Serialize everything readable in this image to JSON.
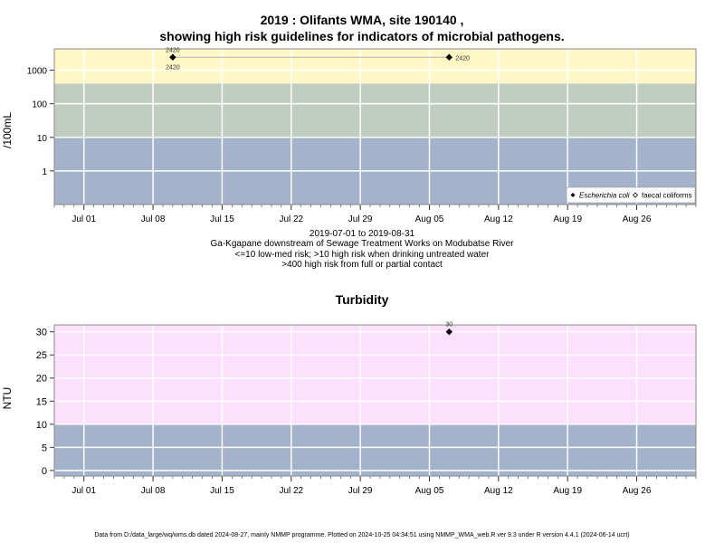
{
  "title_line1": "2019 : Olifants WMA, site 190140 ,",
  "title_line2": "showing high risk guidelines for indicators of microbial pathogens.",
  "caption": {
    "line1": "2019-07-01 to 2019-08-31",
    "line2": "Ga-Kgapane downstream of Sewage Treatment Works on Modubatse River",
    "line3": "<=10 low-med risk; >10 high risk when drinking untreated water",
    "line4": ">400 high risk from full or partial contact"
  },
  "footer": "Data from D:/data_large/wq/wms.db dated 2024-08-27, mainly NMMP programme. Plotted on 2024-10-25 04:34:51 using NMMP_WMA_web.R ver 9.3 under R version 4.4.1 (2024-06-14 ucrt)",
  "colors": {
    "low_band": "#a3b3cb",
    "mid_band": "#c2cdc2",
    "high_band_micro": "#fff7c6",
    "high_band_turb": "#fde0fd",
    "grid": "#ffffff",
    "point": "#000000",
    "connector": "#b0b0b0"
  },
  "chart_data": [
    {
      "type": "scatter",
      "ylabel": "/100mL",
      "y_scale": "log",
      "ylim": [
        0.1,
        4300
      ],
      "y_ticks": [
        1,
        10,
        100,
        1000
      ],
      "y_tick_labels": [
        "1",
        "10",
        "100",
        "1000"
      ],
      "xlim": [
        "2019-06-28",
        "2019-09-01"
      ],
      "x_ticks": [
        "2019-07-01",
        "2019-07-08",
        "2019-07-15",
        "2019-07-22",
        "2019-07-29",
        "2019-08-05",
        "2019-08-12",
        "2019-08-19",
        "2019-08-26"
      ],
      "x_tick_labels": [
        "Jul 01",
        "Jul 08",
        "Jul 15",
        "Jul 22",
        "Jul 29",
        "Aug 05",
        "Aug 12",
        "Aug 19",
        "Aug 26"
      ],
      "bands": [
        {
          "from": 0.1,
          "to": 10,
          "color": "#a3b3cb"
        },
        {
          "from": 10,
          "to": 400,
          "color": "#c2cdc2"
        },
        {
          "from": 400,
          "to": 4300,
          "color": "#fff7c6"
        }
      ],
      "series": [
        {
          "name": "Escherichia coli",
          "marker": "filled-diamond",
          "points": [
            {
              "x": "2019-07-10",
              "y": 2420
            },
            {
              "x": "2019-08-07",
              "y": 2420
            }
          ]
        },
        {
          "name": "faecal coliforms",
          "marker": "open-diamond",
          "points": []
        }
      ],
      "data_labels": [
        {
          "x": "2019-07-10",
          "y": 2420,
          "text": "2420",
          "side": "above"
        },
        {
          "x": "2019-07-10",
          "y": 2420,
          "text": "2420",
          "side": "below"
        },
        {
          "x": "2019-08-07",
          "y": 2420,
          "text": "2420",
          "side": "right"
        }
      ],
      "legend": {
        "position": "bottom-right",
        "entries": [
          "Escherichia coli",
          "faecal coliforms"
        ]
      }
    },
    {
      "type": "scatter",
      "title": "Turbidity",
      "ylabel": "NTU",
      "y_scale": "linear",
      "ylim": [
        -1.2,
        31.5
      ],
      "y_ticks": [
        0,
        5,
        10,
        15,
        20,
        25,
        30
      ],
      "y_tick_labels": [
        "0",
        "5",
        "10",
        "15",
        "20",
        "25",
        "30"
      ],
      "xlim": [
        "2019-06-28",
        "2019-09-01"
      ],
      "x_ticks": [
        "2019-07-01",
        "2019-07-08",
        "2019-07-15",
        "2019-07-22",
        "2019-07-29",
        "2019-08-05",
        "2019-08-12",
        "2019-08-19",
        "2019-08-26"
      ],
      "x_tick_labels": [
        "Jul 01",
        "Jul 08",
        "Jul 15",
        "Jul 22",
        "Jul 29",
        "Aug 05",
        "Aug 12",
        "Aug 19",
        "Aug 26"
      ],
      "bands": [
        {
          "from": -1.2,
          "to": 10,
          "color": "#a3b3cb"
        },
        {
          "from": 10,
          "to": 31.5,
          "color": "#fde0fd"
        }
      ],
      "series": [
        {
          "marker": "filled-diamond",
          "points": [
            {
              "x": "2019-08-07",
              "y": 30
            }
          ]
        }
      ],
      "data_labels": [
        {
          "x": "2019-08-07",
          "y": 30,
          "text": "30",
          "side": "above"
        }
      ]
    }
  ]
}
